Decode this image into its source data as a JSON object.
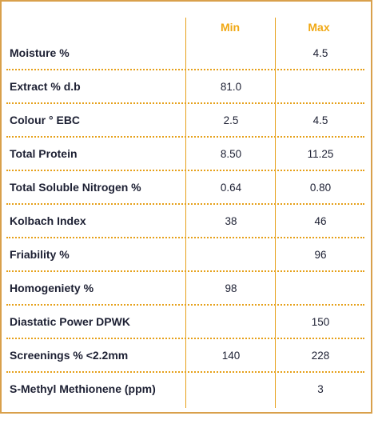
{
  "header": {
    "min_label": "Min",
    "max_label": "Max"
  },
  "rows": [
    {
      "label": "Moisture %",
      "min": "",
      "max": "4.5"
    },
    {
      "label": "Extract % d.b",
      "min": "81.0",
      "max": ""
    },
    {
      "label": "Colour ° EBC",
      "min": "2.5",
      "max": "4.5"
    },
    {
      "label": "Total Protein",
      "min": "8.50",
      "max": "11.25"
    },
    {
      "label": "Total Soluble Nitrogen %",
      "min": "0.64",
      "max": "0.80"
    },
    {
      "label": "Kolbach Index",
      "min": "38",
      "max": "46"
    },
    {
      "label": "Friability %",
      "min": "",
      "max": "96"
    },
    {
      "label": "Homogeniety %",
      "min": "98",
      "max": ""
    },
    {
      "label": "Diastatic Power DPWK",
      "min": "",
      "max": "150"
    },
    {
      "label": "Screenings % <2.2mm",
      "min": "140",
      "max": "228"
    },
    {
      "label": "S-Methyl Methionene (ppm)",
      "min": "",
      "max": "3"
    }
  ],
  "colors": {
    "border": "#d9a04b",
    "accent": "#f0a814",
    "text": "#1d2033"
  }
}
